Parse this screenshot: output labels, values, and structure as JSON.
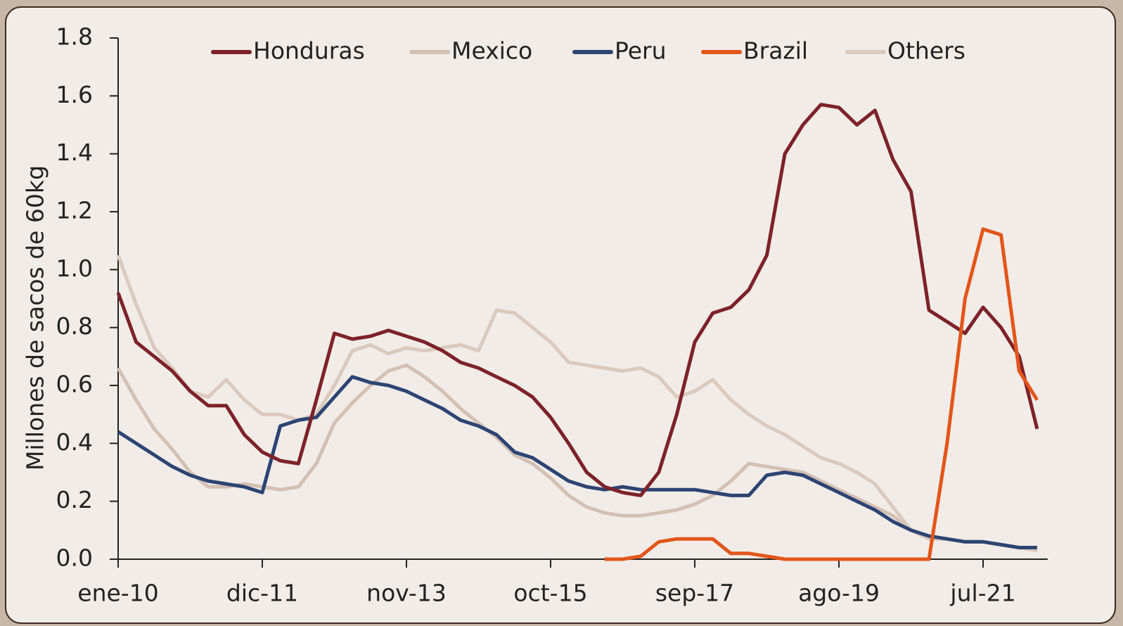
{
  "chart_data": {
    "type": "line",
    "y_label": "Millones de sacos de 60kg",
    "categories": [
      "ene-10",
      null,
      null,
      null,
      null,
      null,
      null,
      null,
      "dic-11",
      null,
      null,
      null,
      null,
      null,
      null,
      null,
      "nov-13",
      null,
      null,
      null,
      null,
      null,
      null,
      null,
      "oct-15",
      null,
      null,
      null,
      null,
      null,
      null,
      null,
      "sep-17",
      null,
      null,
      null,
      null,
      null,
      null,
      null,
      "ago-19",
      null,
      null,
      null,
      null,
      null,
      null,
      null,
      "jul-21",
      null,
      null,
      null
    ],
    "series": [
      {
        "name": "Honduras",
        "color": "#7d2229",
        "values": [
          0.92,
          0.75,
          0.7,
          0.65,
          0.58,
          0.53,
          0.53,
          0.43,
          0.37,
          0.34,
          0.33,
          0.55,
          0.78,
          0.76,
          0.77,
          0.79,
          0.77,
          0.75,
          0.72,
          0.68,
          0.66,
          0.63,
          0.6,
          0.56,
          0.49,
          0.4,
          0.3,
          0.25,
          0.23,
          0.22,
          0.3,
          0.5,
          0.75,
          0.85,
          0.87,
          0.93,
          1.05,
          1.4,
          1.5,
          1.57,
          1.56,
          1.5,
          1.55,
          1.38,
          1.27,
          0.86,
          0.82,
          0.78,
          0.87,
          0.8,
          0.7,
          0.45
        ]
      },
      {
        "name": "Mexico",
        "color": "#d4c0b3",
        "values": [
          0.66,
          0.55,
          0.45,
          0.38,
          0.3,
          0.25,
          0.25,
          0.26,
          0.25,
          0.24,
          0.25,
          0.33,
          0.47,
          0.54,
          0.6,
          0.65,
          0.67,
          0.63,
          0.58,
          0.52,
          0.47,
          0.42,
          0.36,
          0.33,
          0.28,
          0.22,
          0.18,
          0.16,
          0.15,
          0.15,
          0.16,
          0.17,
          0.19,
          0.22,
          0.27,
          0.33,
          0.32,
          0.31,
          0.3,
          0.27,
          0.24,
          0.21,
          0.18,
          0.15,
          0.1,
          0.07,
          0.07,
          0.06,
          0.06,
          0.05,
          0.04,
          0.03
        ]
      },
      {
        "name": "Peru",
        "color": "#2c4472",
        "values": [
          0.44,
          0.4,
          0.36,
          0.32,
          0.29,
          0.27,
          0.26,
          0.25,
          0.23,
          0.46,
          0.48,
          0.49,
          0.56,
          0.63,
          0.61,
          0.6,
          0.58,
          0.55,
          0.52,
          0.48,
          0.46,
          0.43,
          0.37,
          0.35,
          0.31,
          0.27,
          0.25,
          0.24,
          0.25,
          0.24,
          0.24,
          0.24,
          0.24,
          0.23,
          0.22,
          0.22,
          0.29,
          0.3,
          0.29,
          0.26,
          0.23,
          0.2,
          0.17,
          0.13,
          0.1,
          0.08,
          0.07,
          0.06,
          0.06,
          0.05,
          0.04,
          0.04
        ]
      },
      {
        "name": "Brazil",
        "color": "#e2561c",
        "values": [
          null,
          null,
          null,
          null,
          null,
          null,
          null,
          null,
          null,
          null,
          null,
          null,
          null,
          null,
          null,
          null,
          null,
          null,
          null,
          null,
          null,
          null,
          null,
          null,
          null,
          null,
          null,
          0.0,
          0.0,
          0.01,
          0.06,
          0.07,
          0.07,
          0.07,
          0.02,
          0.02,
          0.01,
          0.0,
          0.0,
          0.0,
          0.0,
          0.0,
          0.0,
          0.0,
          0.0,
          0.0,
          0.4,
          0.9,
          1.14,
          1.12,
          0.65,
          0.55
        ]
      },
      {
        "name": "Others",
        "color": "#dcc9bd",
        "values": [
          1.05,
          0.88,
          0.73,
          0.66,
          0.58,
          0.56,
          0.62,
          0.55,
          0.5,
          0.5,
          0.48,
          0.5,
          0.6,
          0.72,
          0.74,
          0.71,
          0.73,
          0.72,
          0.73,
          0.74,
          0.72,
          0.86,
          0.85,
          0.8,
          0.75,
          0.68,
          0.67,
          0.66,
          0.65,
          0.66,
          0.63,
          0.56,
          0.58,
          0.62,
          0.55,
          0.5,
          0.46,
          0.43,
          0.39,
          0.35,
          0.33,
          0.3,
          0.26,
          0.18,
          0.1,
          0.07,
          0.07,
          0.06,
          0.06,
          0.05,
          0.04,
          0.03
        ]
      }
    ],
    "ylim": [
      0,
      1.8
    ],
    "yticks": [
      {
        "value": 0,
        "label": "0.0"
      },
      0.2,
      0.4,
      0.6,
      0.8,
      {
        "value": 1,
        "label": "1.0"
      },
      1.2,
      1.4,
      1.6,
      1.8
    ],
    "legend": "top"
  }
}
